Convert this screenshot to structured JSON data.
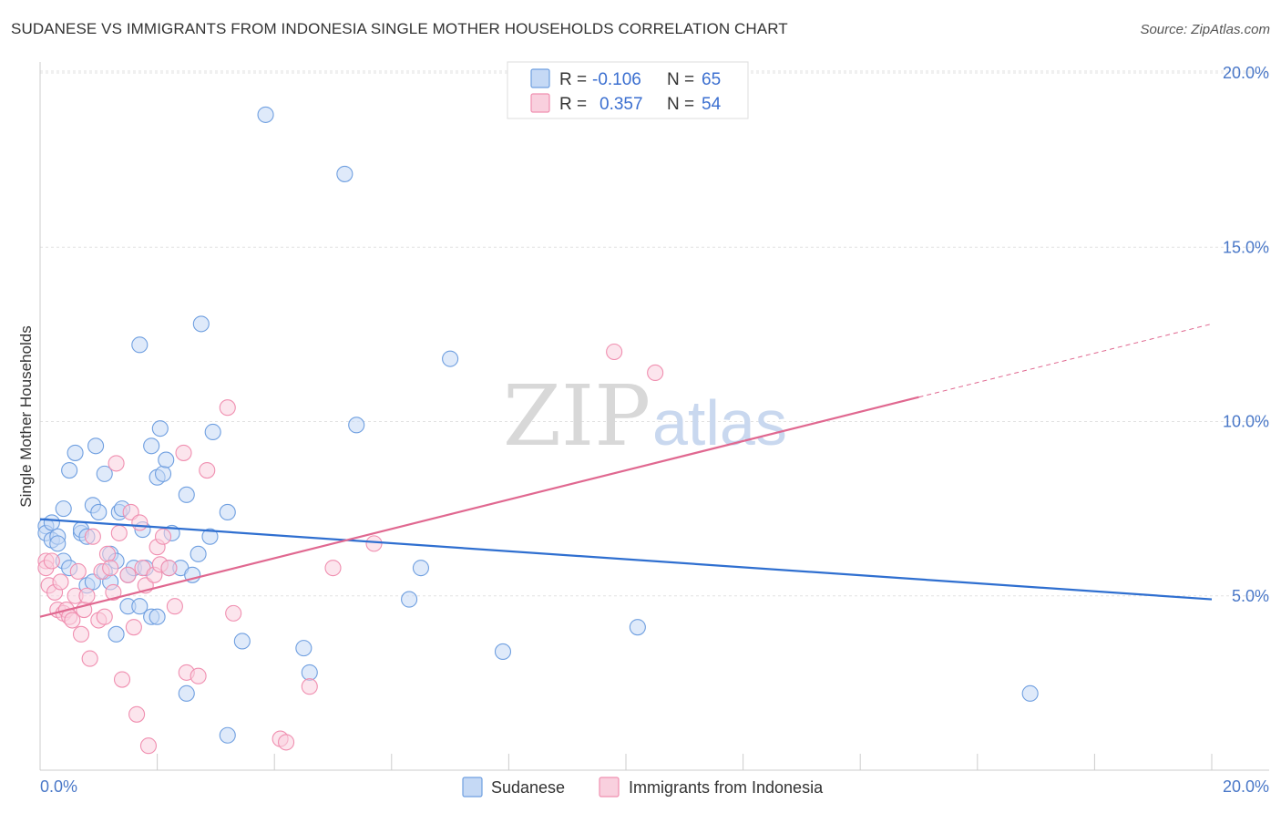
{
  "title": "SUDANESE VS IMMIGRANTS FROM INDONESIA SINGLE MOTHER HOUSEHOLDS CORRELATION CHART",
  "source": "Source: ZipAtlas.com",
  "watermark": {
    "zip": "ZIP",
    "atlas": "atlas"
  },
  "chart_data": {
    "type": "scatter",
    "title": "SUDANESE VS IMMIGRANTS FROM INDONESIA SINGLE MOTHER HOUSEHOLDS CORRELATION CHART",
    "xlabel": "",
    "ylabel": "Single Mother Households",
    "xlim": [
      0,
      20
    ],
    "ylim": [
      0,
      20.8
    ],
    "x_tick_labels": {
      "left": "0.0%",
      "right": "20.0%"
    },
    "y_ticks": [
      {
        "value": 5,
        "label": "5.0%"
      },
      {
        "value": 10,
        "label": "10.0%"
      },
      {
        "value": 15,
        "label": "15.0%"
      },
      {
        "value": 20,
        "label": "20.0%"
      }
    ],
    "legend": {
      "rows": [
        {
          "r_label": "R =",
          "r_value": "-0.106",
          "n_label": "N =",
          "n_value": "65"
        },
        {
          "r_label": "R =",
          "r_value": "0.357",
          "n_label": "N =",
          "n_value": "54"
        }
      ]
    },
    "series": [
      {
        "name": "Sudanese",
        "color": "#6f9fe0",
        "fill": "#c5d9f5",
        "line_color": "#2f6fd0",
        "trend": {
          "x0": 0,
          "y0": 7.2,
          "x1": 20,
          "y1": 4.9
        },
        "points": [
          [
            0.1,
            7.0
          ],
          [
            0.1,
            6.8
          ],
          [
            0.2,
            6.6
          ],
          [
            0.2,
            7.1
          ],
          [
            0.3,
            6.7
          ],
          [
            0.3,
            6.5
          ],
          [
            0.4,
            7.5
          ],
          [
            0.4,
            6.0
          ],
          [
            0.5,
            5.8
          ],
          [
            0.5,
            8.6
          ],
          [
            0.6,
            9.1
          ],
          [
            0.7,
            6.8
          ],
          [
            0.7,
            6.9
          ],
          [
            0.8,
            6.7
          ],
          [
            0.8,
            5.3
          ],
          [
            0.9,
            5.4
          ],
          [
            0.9,
            7.6
          ],
          [
            0.95,
            9.3
          ],
          [
            1.0,
            7.4
          ],
          [
            1.1,
            8.5
          ],
          [
            1.1,
            5.7
          ],
          [
            1.2,
            6.2
          ],
          [
            1.2,
            5.4
          ],
          [
            1.3,
            6.0
          ],
          [
            1.3,
            3.9
          ],
          [
            1.35,
            7.4
          ],
          [
            1.4,
            7.5
          ],
          [
            1.5,
            4.7
          ],
          [
            1.5,
            5.6
          ],
          [
            1.6,
            5.8
          ],
          [
            1.7,
            4.7
          ],
          [
            1.7,
            12.2
          ],
          [
            1.75,
            6.9
          ],
          [
            1.8,
            5.8
          ],
          [
            1.9,
            4.4
          ],
          [
            1.9,
            9.3
          ],
          [
            2.0,
            4.4
          ],
          [
            2.0,
            8.4
          ],
          [
            2.05,
            9.8
          ],
          [
            2.1,
            8.5
          ],
          [
            2.15,
            8.9
          ],
          [
            2.2,
            5.8
          ],
          [
            2.25,
            6.8
          ],
          [
            2.4,
            5.8
          ],
          [
            2.5,
            7.9
          ],
          [
            2.5,
            2.2
          ],
          [
            2.6,
            5.6
          ],
          [
            2.7,
            6.2
          ],
          [
            2.75,
            12.8
          ],
          [
            2.9,
            6.7
          ],
          [
            2.95,
            9.7
          ],
          [
            3.2,
            7.4
          ],
          [
            3.2,
            1.0
          ],
          [
            3.45,
            3.7
          ],
          [
            3.85,
            18.8
          ],
          [
            4.5,
            3.5
          ],
          [
            4.6,
            2.8
          ],
          [
            5.2,
            17.1
          ],
          [
            5.4,
            9.9
          ],
          [
            6.3,
            4.9
          ],
          [
            6.5,
            5.8
          ],
          [
            7.0,
            11.8
          ],
          [
            7.9,
            3.4
          ],
          [
            10.2,
            4.1
          ],
          [
            16.9,
            2.2
          ]
        ]
      },
      {
        "name": "Immigrants from Indonesia",
        "color": "#f08fb0",
        "fill": "#f9d0de",
        "line_color": "#e06890",
        "trend": {
          "x0": 0,
          "y0": 4.4,
          "x1": 15.0,
          "y1": 10.7,
          "dash_x1": 20,
          "dash_y1": 12.8
        },
        "points": [
          [
            0.1,
            6.0
          ],
          [
            0.1,
            5.8
          ],
          [
            0.15,
            5.3
          ],
          [
            0.2,
            6.0
          ],
          [
            0.25,
            5.1
          ],
          [
            0.3,
            4.6
          ],
          [
            0.35,
            5.4
          ],
          [
            0.4,
            4.5
          ],
          [
            0.45,
            4.6
          ],
          [
            0.5,
            4.4
          ],
          [
            0.55,
            4.3
          ],
          [
            0.6,
            5.0
          ],
          [
            0.65,
            5.7
          ],
          [
            0.7,
            3.9
          ],
          [
            0.75,
            4.6
          ],
          [
            0.8,
            5.0
          ],
          [
            0.85,
            3.2
          ],
          [
            0.9,
            6.7
          ],
          [
            1.0,
            4.3
          ],
          [
            1.05,
            5.7
          ],
          [
            1.1,
            4.4
          ],
          [
            1.15,
            6.2
          ],
          [
            1.2,
            5.8
          ],
          [
            1.25,
            5.1
          ],
          [
            1.3,
            8.8
          ],
          [
            1.35,
            6.8
          ],
          [
            1.4,
            2.6
          ],
          [
            1.5,
            5.6
          ],
          [
            1.55,
            7.4
          ],
          [
            1.6,
            4.1
          ],
          [
            1.65,
            1.6
          ],
          [
            1.7,
            7.1
          ],
          [
            1.75,
            5.8
          ],
          [
            1.8,
            5.3
          ],
          [
            1.85,
            0.7
          ],
          [
            1.95,
            5.6
          ],
          [
            2.0,
            6.4
          ],
          [
            2.05,
            5.9
          ],
          [
            2.1,
            6.7
          ],
          [
            2.2,
            5.8
          ],
          [
            2.3,
            4.7
          ],
          [
            2.45,
            9.1
          ],
          [
            2.5,
            2.8
          ],
          [
            2.7,
            2.7
          ],
          [
            2.85,
            8.6
          ],
          [
            3.2,
            10.4
          ],
          [
            3.3,
            4.5
          ],
          [
            4.1,
            0.9
          ],
          [
            4.2,
            0.8
          ],
          [
            4.6,
            2.4
          ],
          [
            5.0,
            5.8
          ],
          [
            5.7,
            6.5
          ],
          [
            9.8,
            12.0
          ],
          [
            10.5,
            11.4
          ]
        ]
      }
    ]
  }
}
